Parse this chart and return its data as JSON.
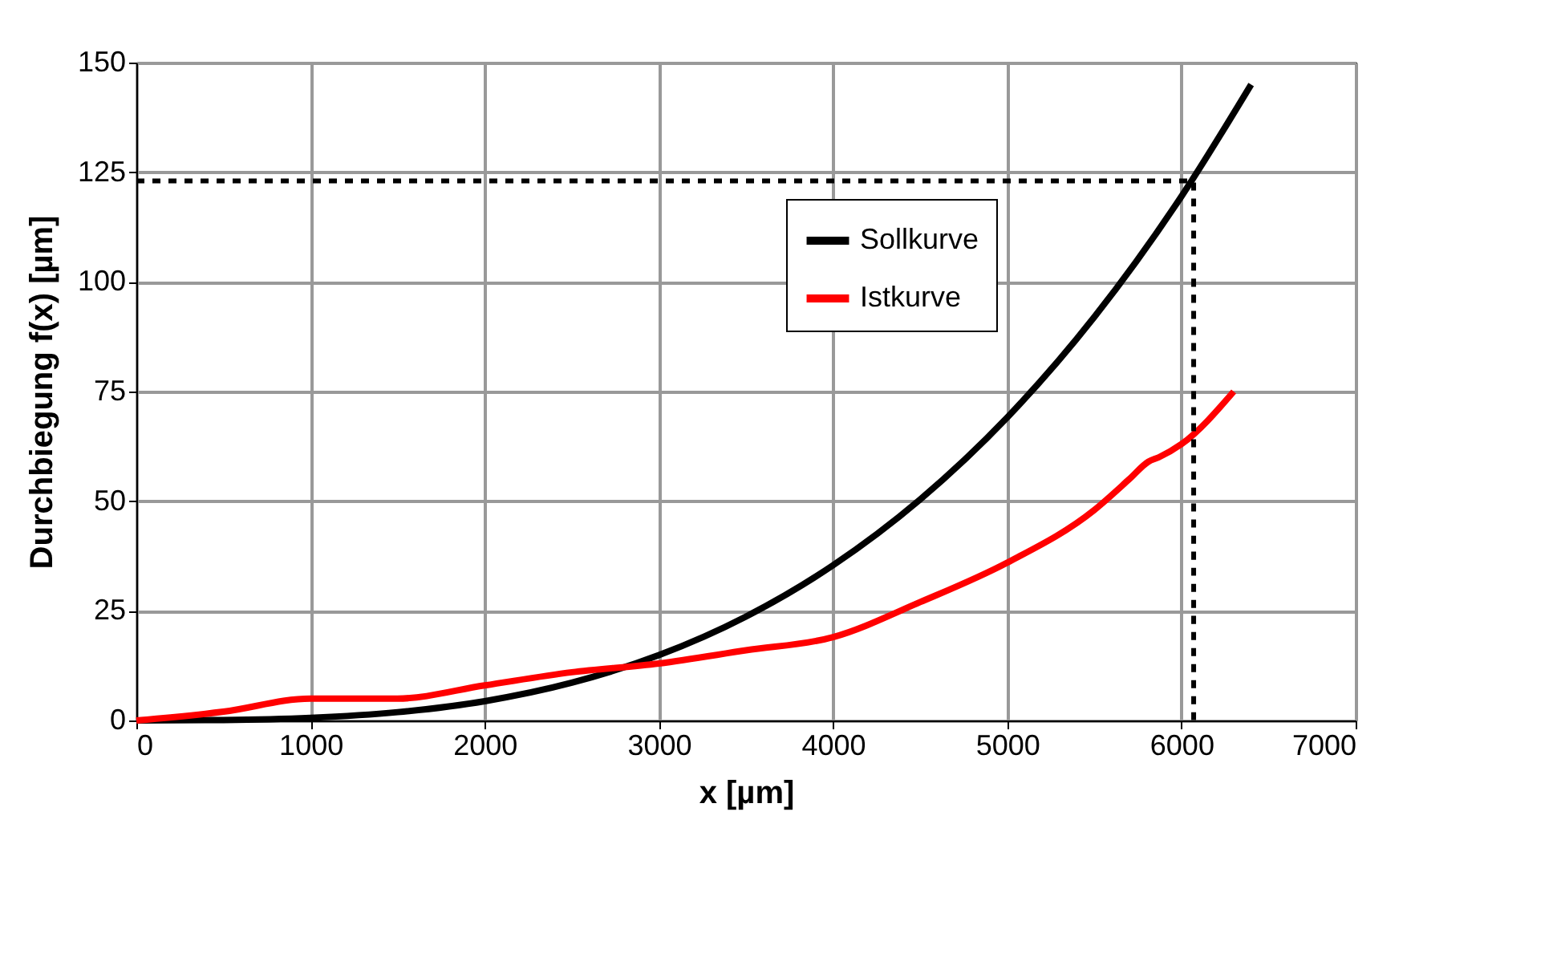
{
  "chart_data": {
    "type": "line",
    "xlabel": "x [µm]",
    "ylabel": "Durchbiegung f(x) [µm]",
    "xlim": [
      0,
      7000
    ],
    "xticks": [
      0,
      1000,
      2000,
      3000,
      4000,
      5000,
      6000,
      7000
    ],
    "ylim": [
      0,
      150
    ],
    "yticks": [
      0,
      25,
      50,
      75,
      100,
      125,
      150
    ],
    "grid": true,
    "legend": "top right",
    "marker": "none",
    "series": [
      {
        "name": "Sollkurve",
        "color": "#000000",
        "x": [
          0,
          500,
          1000,
          1500,
          2000,
          2500,
          3000,
          3500,
          4000,
          4500,
          5000,
          5500,
          6000,
          6400
        ],
        "values": [
          0,
          0.1,
          0.6,
          1.9,
          4.4,
          8.6,
          14.9,
          23.7,
          35.4,
          50.4,
          69.1,
          92.0,
          119.5,
          145
        ]
      },
      {
        "name": "Istkurve",
        "color": "#ff0000",
        "x": [
          0,
          500,
          1000,
          1500,
          2000,
          2500,
          3000,
          3500,
          4000,
          4500,
          5000,
          5500,
          5700,
          5810,
          5870,
          6000,
          6300
        ],
        "values": [
          0,
          2,
          5,
          5,
          8,
          11,
          13,
          16,
          19,
          27,
          36,
          48,
          55,
          59,
          60,
          63,
          75
        ]
      },
      {
        "color": "#000000",
        "line_style": "dashed",
        "x": [
          0,
          6070,
          6070
        ],
        "values": [
          123,
          123,
          0
        ]
      }
    ]
  }
}
